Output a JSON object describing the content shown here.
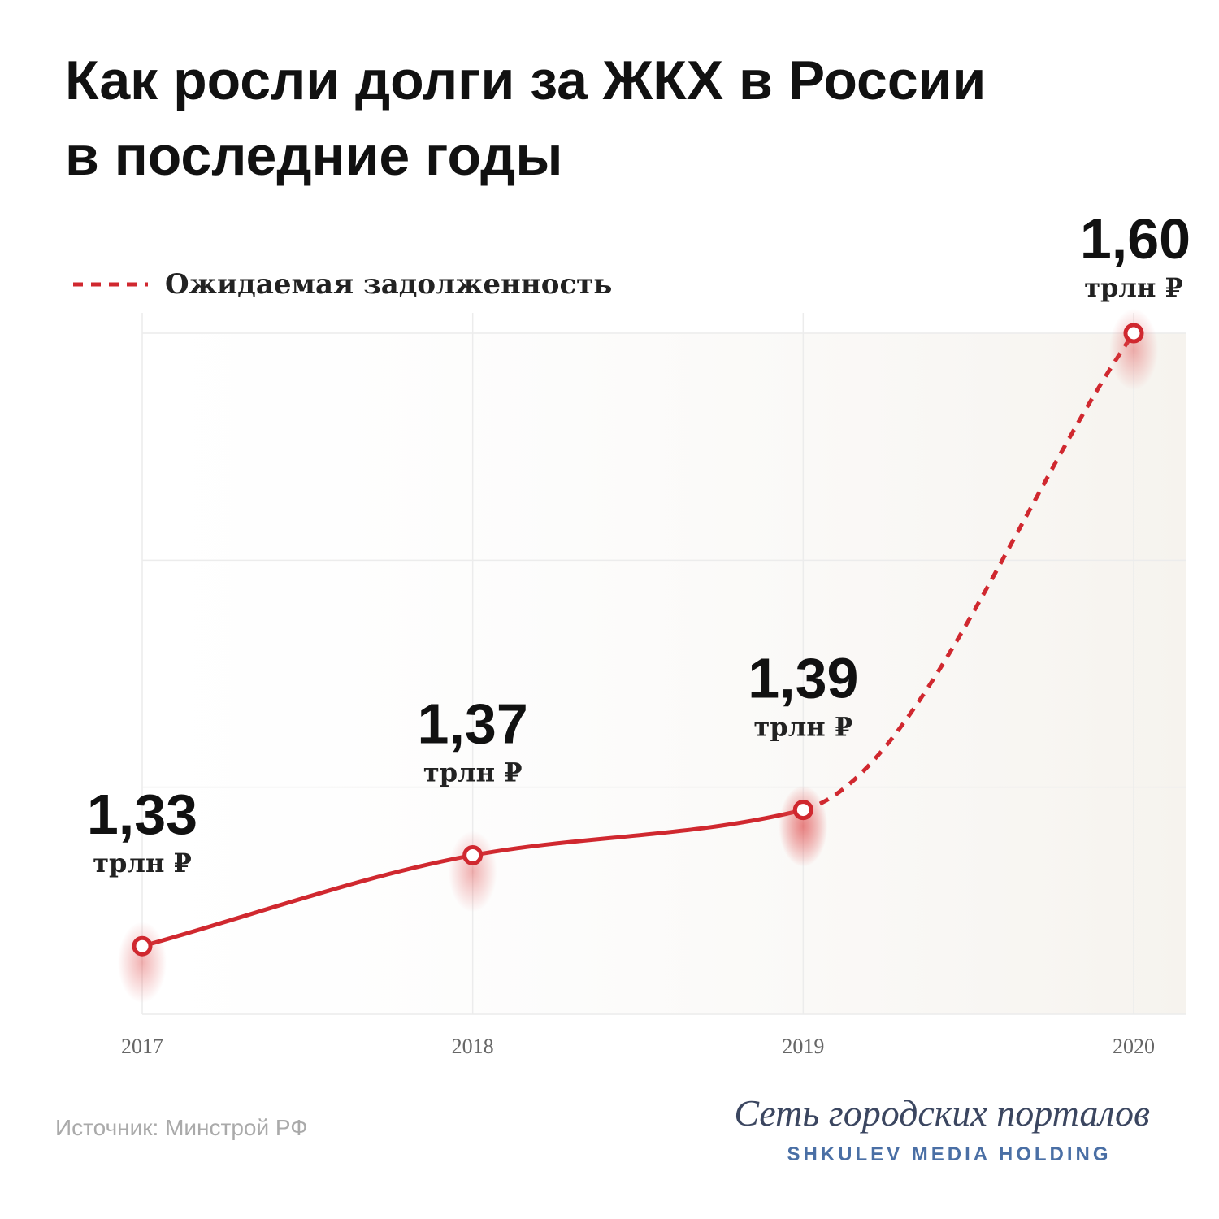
{
  "chart_data": {
    "type": "line",
    "title": [
      "Как росли долги за ЖКХ в России",
      "в последние годы"
    ],
    "categories": [
      "2017",
      "2018",
      "2019",
      "2020"
    ],
    "series": [
      {
        "color": "#d0282f",
        "style": "solid",
        "values": [
          1.33,
          1.37,
          1.39,
          null
        ],
        "value_labels": [
          "1,33",
          "1,37",
          "1,39",
          null
        ]
      },
      {
        "name": "Ожидаемая задолженность",
        "color": "#d0282f",
        "style": "dashed",
        "values": [
          null,
          null,
          1.39,
          1.6
        ],
        "value_labels": [
          null,
          null,
          null,
          "1,60"
        ]
      }
    ],
    "unit": "трлн ₽",
    "ylim": [
      1.3,
      1.6
    ],
    "yticks": [
      1.3,
      1.4,
      1.5,
      1.6
    ],
    "grid": true,
    "source": "Источник: Минстрой РФ",
    "brand": "Сеть городских порталов",
    "brand_sub": "SHKULEV MEDIA HOLDING"
  }
}
